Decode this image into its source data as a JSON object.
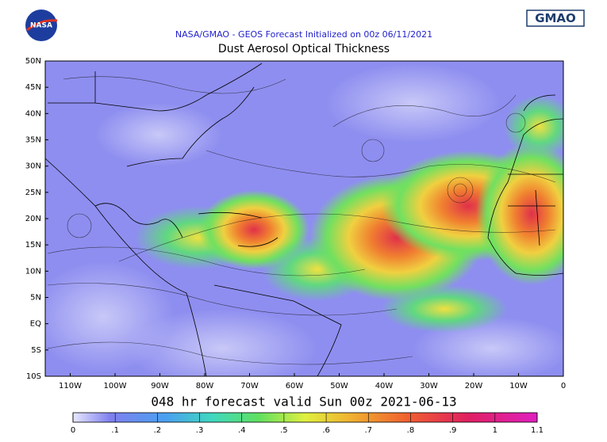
{
  "header": {
    "agency": "NASA",
    "logo": "GMAO",
    "subtitle": "NASA/GMAO - GEOS Forecast Initialized on 00z 06/11/2021",
    "title": "Dust Aerosol Optical Thickness"
  },
  "map": {
    "lat_labels": [
      "50N",
      "45N",
      "40N",
      "35N",
      "30N",
      "25N",
      "20N",
      "15N",
      "10N",
      "5N",
      "EQ",
      "5S",
      "10S"
    ],
    "lon_labels": [
      "110W",
      "100W",
      "90W",
      "80W",
      "70W",
      "60W",
      "50W",
      "40W",
      "30W",
      "20W",
      "10W",
      "0"
    ],
    "caption": "048 hr forecast valid Sun 00z 2021-06-13"
  },
  "colorbar": {
    "ticks": [
      {
        "value": 0,
        "label": "0"
      },
      {
        "value": 0.1,
        "label": ".1"
      },
      {
        "value": 0.2,
        "label": ".2"
      },
      {
        "value": 0.3,
        "label": ".3"
      },
      {
        "value": 0.4,
        "label": ".4"
      },
      {
        "value": 0.5,
        "label": ".5"
      },
      {
        "value": 0.6,
        "label": ".6"
      },
      {
        "value": 0.7,
        "label": ".7"
      },
      {
        "value": 0.8,
        "label": ".8"
      },
      {
        "value": 0.9,
        "label": ".9"
      },
      {
        "value": 1,
        "label": "1"
      },
      {
        "value": 1.1,
        "label": "1.1"
      }
    ]
  }
}
